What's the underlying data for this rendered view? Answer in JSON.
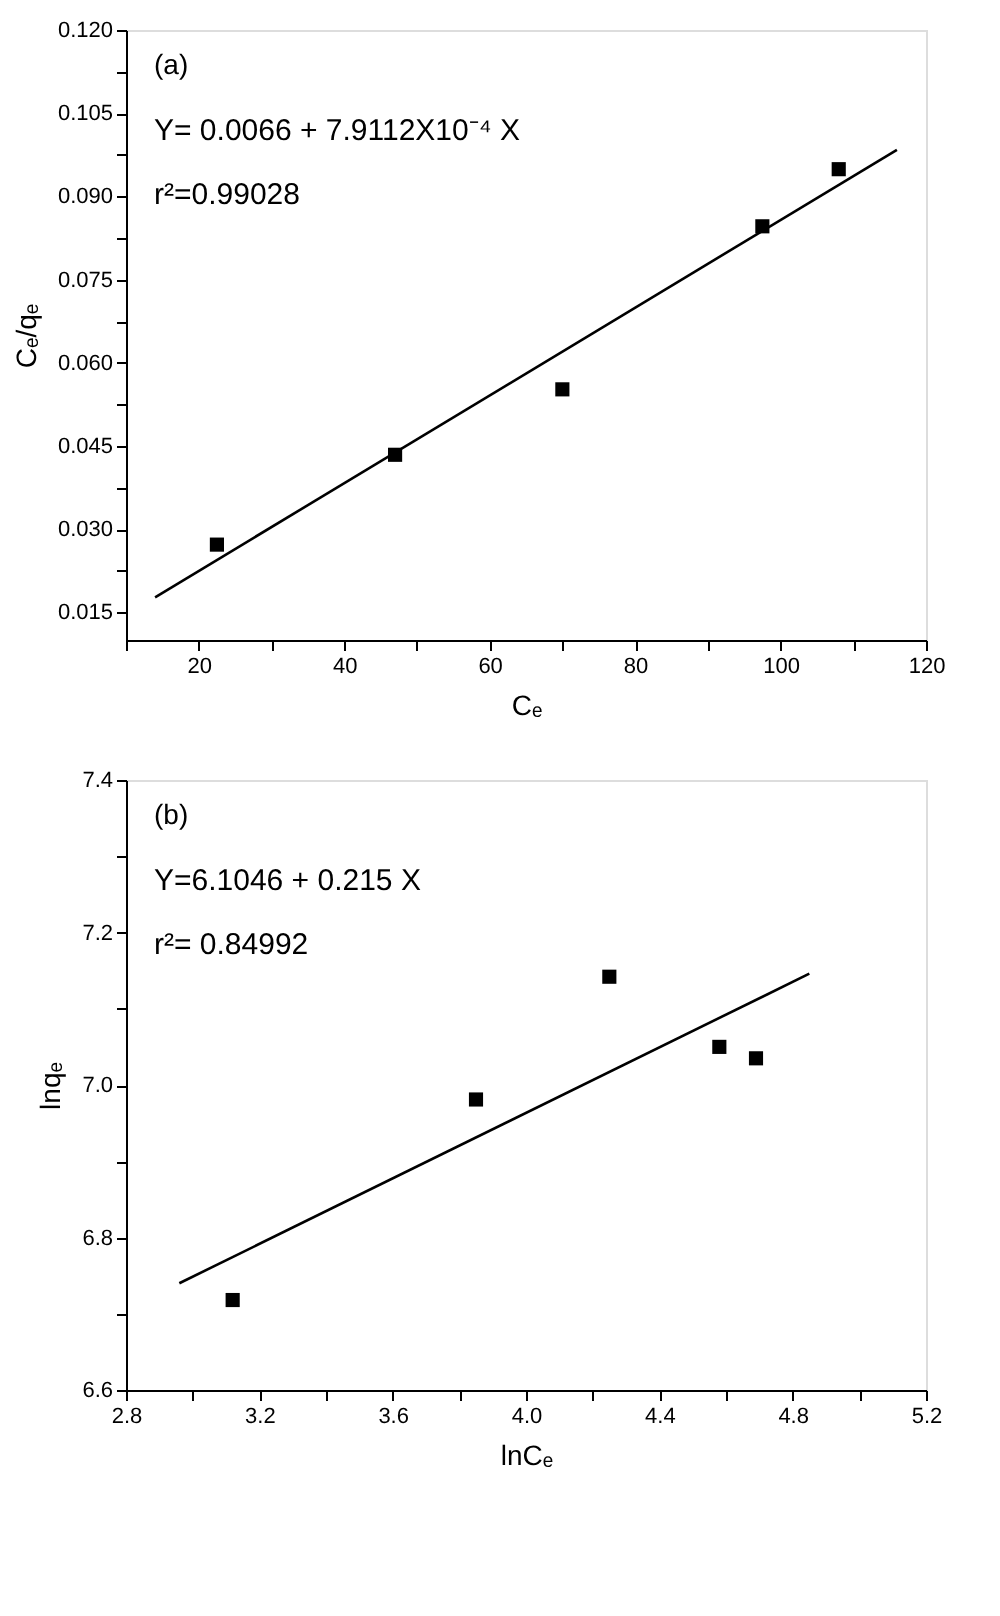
{
  "chart_data": [
    {
      "type": "scatter",
      "xlabel": "Cₑ",
      "ylabel": "Cₑ/qₑ",
      "annotations": [
        "(a)",
        "Y= 0.0066 + 7.9112X10⁻⁴ X",
        "r²=0.99028"
      ],
      "grid": false,
      "legend": false,
      "xlim": [
        10,
        120
      ],
      "xticks": [
        {
          "value": 10,
          "label": null
        },
        20,
        {
          "value": 30,
          "label": null
        },
        40,
        {
          "value": 50,
          "label": null
        },
        60,
        {
          "value": 70,
          "label": null
        },
        80,
        {
          "value": 90,
          "label": null
        },
        100,
        {
          "value": 110,
          "label": null
        },
        120
      ],
      "ylim": [
        0.01,
        0.12
      ],
      "yticks": [
        {
          "value": 0.015,
          "label": "0.015"
        },
        {
          "value": 0.0225,
          "label": null
        },
        {
          "value": 0.03,
          "label": "0.030"
        },
        {
          "value": 0.0375,
          "label": null
        },
        {
          "value": 0.045,
          "label": "0.045"
        },
        {
          "value": 0.0525,
          "label": null
        },
        {
          "value": 0.06,
          "label": "0.060"
        },
        {
          "value": 0.0675,
          "label": null
        },
        {
          "value": 0.075,
          "label": "0.075"
        },
        {
          "value": 0.0825,
          "label": null
        },
        {
          "value": 0.09,
          "label": "0.090"
        },
        {
          "value": 0.0975,
          "label": null
        },
        {
          "value": 0.105,
          "label": "0.105"
        },
        {
          "value": 0.1125,
          "label": null
        },
        {
          "value": 0.12,
          "label": "0.120"
        }
      ],
      "series": [
        {
          "type": "scatter",
          "marker": "square",
          "color": "#000000",
          "x": [
            22.5,
            47,
            70,
            97.5,
            108
          ],
          "values": [
            0.0272,
            0.0434,
            0.0552,
            0.0846,
            0.0949
          ]
        },
        {
          "type": "line",
          "color": "#000000",
          "x": [
            14,
            116
          ],
          "values": [
            0.0177,
            0.0984
          ]
        }
      ]
    },
    {
      "type": "scatter",
      "xlabel": "lnCₑ",
      "ylabel": "lnqₑ",
      "annotations": [
        "(b)",
        "Y=6.1046 + 0.215 X",
        "r²= 0.84992"
      ],
      "grid": false,
      "legend": false,
      "xlim": [
        2.8,
        5.2
      ],
      "xticks": [
        2.8,
        {
          "value": 3.0,
          "label": null
        },
        3.2,
        {
          "value": 3.4,
          "label": null
        },
        3.6,
        {
          "value": 3.8,
          "label": null
        },
        {
          "value": 4,
          "label": "4.0"
        },
        {
          "value": 4.2,
          "label": null
        },
        4.4,
        {
          "value": 4.6,
          "label": null
        },
        4.8,
        {
          "value": 5.0,
          "label": null
        },
        5.2
      ],
      "ylim": [
        6.6,
        7.4
      ],
      "yticks": [
        6.6,
        {
          "value": 6.7,
          "label": null
        },
        6.8,
        {
          "value": 6.9,
          "label": null
        },
        {
          "value": 7,
          "label": "7.0"
        },
        {
          "value": 7.1,
          "label": null
        },
        7.2,
        {
          "value": 7.3,
          "label": null
        },
        7.4
      ],
      "series": [
        {
          "type": "scatter",
          "marker": "square",
          "color": "#000000",
          "x": [
            3.12,
            3.85,
            4.25,
            4.58,
            4.69
          ],
          "values": [
            6.718,
            6.981,
            7.142,
            7.05,
            7.035
          ]
        },
        {
          "type": "line",
          "color": "#000000",
          "x": [
            2.96,
            4.85
          ],
          "values": [
            6.74,
            7.146
          ]
        }
      ]
    }
  ]
}
